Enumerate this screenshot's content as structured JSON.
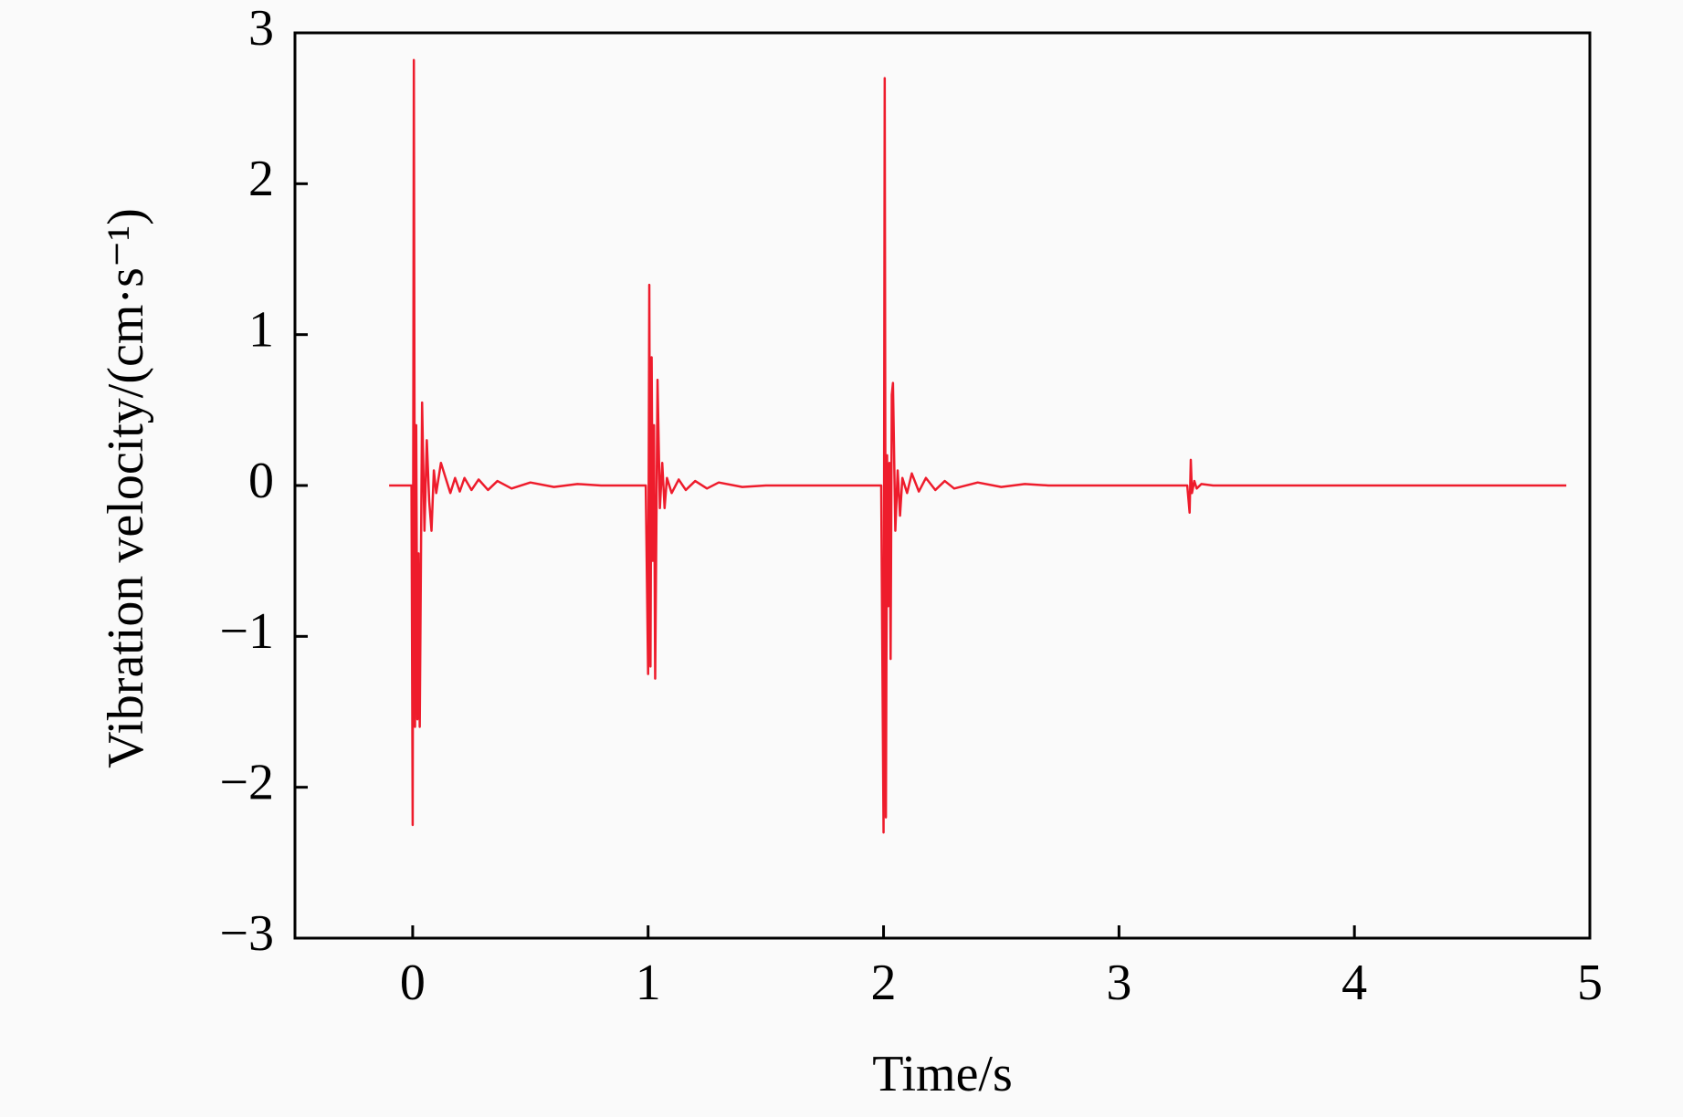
{
  "chart_data": {
    "type": "line",
    "xlabel": "Time/s",
    "ylabel": "Vibration velocity/(cm·s⁻¹)",
    "x": [
      -0.1,
      -0.005,
      0.0,
      0.005,
      0.01,
      0.015,
      0.02,
      0.025,
      0.03,
      0.04,
      0.05,
      0.06,
      0.07,
      0.08,
      0.09,
      0.1,
      0.12,
      0.14,
      0.16,
      0.18,
      0.2,
      0.22,
      0.25,
      0.28,
      0.32,
      0.36,
      0.42,
      0.5,
      0.6,
      0.7,
      0.8,
      0.99,
      1.0,
      1.005,
      1.01,
      1.015,
      1.02,
      1.025,
      1.03,
      1.04,
      1.05,
      1.06,
      1.07,
      1.08,
      1.1,
      1.13,
      1.16,
      1.2,
      1.25,
      1.3,
      1.4,
      1.5,
      1.99,
      2.0,
      2.005,
      2.01,
      2.015,
      2.02,
      2.025,
      2.03,
      2.035,
      2.04,
      2.05,
      2.06,
      2.07,
      2.08,
      2.1,
      2.12,
      2.15,
      2.18,
      2.22,
      2.26,
      2.3,
      2.4,
      2.5,
      2.6,
      2.7,
      3.29,
      3.3,
      3.305,
      3.31,
      3.32,
      3.33,
      3.35,
      3.4,
      4.9
    ],
    "series": [
      {
        "color": "#ee1c2c",
        "values": [
          0,
          0,
          -2.25,
          2.82,
          -1.6,
          0.4,
          -1.55,
          -0.45,
          -1.6,
          0.55,
          -0.3,
          0.3,
          -0.1,
          -0.3,
          0.1,
          -0.05,
          0.15,
          0.05,
          -0.05,
          0.05,
          -0.04,
          0.05,
          -0.03,
          0.04,
          -0.03,
          0.03,
          -0.02,
          0.02,
          -0.01,
          0.01,
          0,
          0,
          -1.25,
          1.33,
          -1.2,
          0.85,
          -0.5,
          0.4,
          -1.28,
          0.7,
          -0.15,
          0.15,
          -0.15,
          0.05,
          -0.05,
          0.04,
          -0.03,
          0.03,
          -0.02,
          0.02,
          -0.01,
          0,
          0,
          -2.3,
          2.7,
          -2.2,
          0.2,
          -0.8,
          0.15,
          -1.15,
          0.6,
          0.68,
          -0.3,
          0.1,
          -0.2,
          0.05,
          -0.05,
          0.08,
          -0.04,
          0.05,
          -0.03,
          0.03,
          -0.02,
          0.02,
          -0.01,
          0.01,
          0,
          0,
          -0.18,
          0.17,
          -0.05,
          0.03,
          -0.02,
          0.01,
          0,
          0
        ]
      }
    ],
    "xlim": [
      -0.5,
      5
    ],
    "xticks": [
      0,
      1,
      2,
      3,
      4,
      5
    ],
    "ylim": [
      -3,
      3
    ],
    "yticks": [
      {
        "value": -3,
        "label": "−3"
      },
      {
        "value": -2,
        "label": "−2"
      },
      {
        "value": -1,
        "label": "−1"
      },
      0,
      1,
      2,
      3
    ]
  }
}
